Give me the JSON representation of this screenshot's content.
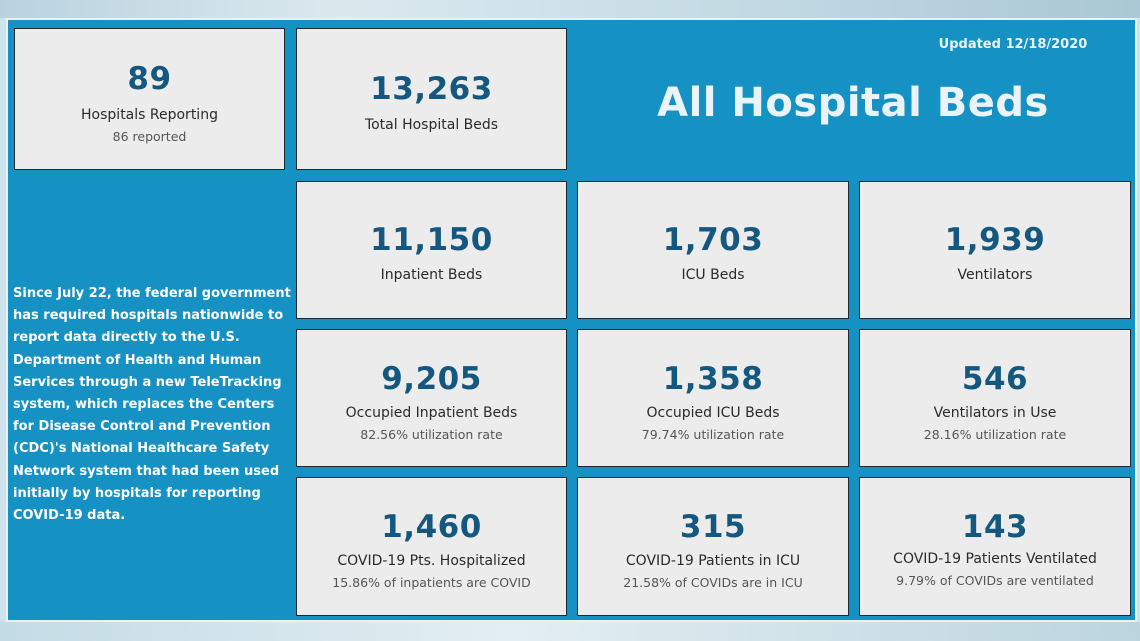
{
  "header": {
    "updated": "Updated 12/18/2020",
    "title": "All Hospital Beds"
  },
  "description": "Since July 22, the federal government has required hospitals nationwide to report data directly to the U.S. Department of Health and Human Services through a new TeleTracking system, which replaces the Centers for Disease Control and Prevention (CDC)'s National Healthcare Safety Network system that had been used initially by hospitals for reporting COVID-19 data.",
  "cards": {
    "hospitals": {
      "value": "89",
      "label": "Hospitals Reporting",
      "sub": "86 reported"
    },
    "total_beds": {
      "value": "13,263",
      "label": "Total Hospital Beds"
    },
    "inpatient": {
      "value": "11,150",
      "label": "Inpatient Beds"
    },
    "icu": {
      "value": "1,703",
      "label": "ICU Beds"
    },
    "ventilators": {
      "value": "1,939",
      "label": "Ventilators"
    },
    "occ_inpatient": {
      "value": "9,205",
      "label": "Occupied Inpatient Beds",
      "sub": "82.56% utilization rate"
    },
    "occ_icu": {
      "value": "1,358",
      "label": "Occupied ICU Beds",
      "sub": "79.74% utilization rate"
    },
    "vent_use": {
      "value": "546",
      "label": "Ventilators in Use",
      "sub": "28.16% utilization rate"
    },
    "covid_hosp": {
      "value": "1,460",
      "label": "COVID-19 Pts. Hospitalized",
      "sub": "15.86% of inpatients are COVID"
    },
    "covid_icu": {
      "value": "315",
      "label": "COVID-19 Patients in ICU",
      "sub": "21.58% of COVIDs are in ICU"
    },
    "covid_vent": {
      "value": "143",
      "label": "COVID-19 Patients Ventilated",
      "sub": "9.79% of COVIDs are ventilated"
    }
  },
  "colors": {
    "board": "#1592c3",
    "card": "#ececec",
    "number": "#14587f"
  }
}
